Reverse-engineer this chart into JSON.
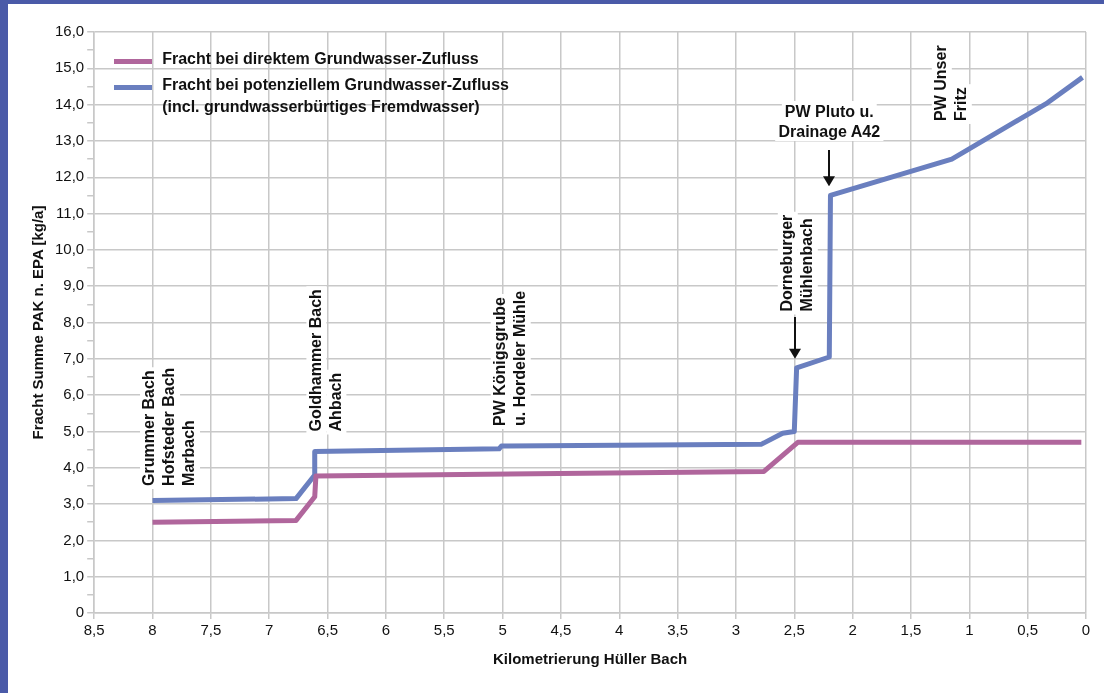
{
  "chart_data": {
    "type": "line",
    "xlabel": "Kilometrierung Hüller Bach",
    "ylabel": "Fracht Summe PAK n. EPA [kg/a]",
    "xlim": [
      8.5,
      0
    ],
    "xticks": [
      {
        "value": 8.5,
        "label": "8,5"
      },
      8,
      {
        "value": 7.5,
        "label": "7,5"
      },
      7,
      {
        "value": 6.5,
        "label": "6,5"
      },
      6,
      {
        "value": 5.5,
        "label": "5,5"
      },
      5,
      {
        "value": 4.5,
        "label": "4,5"
      },
      4,
      {
        "value": 3.5,
        "label": "3,5"
      },
      3,
      {
        "value": 2.5,
        "label": "2,5"
      },
      2,
      {
        "value": 1.5,
        "label": "1,5"
      },
      1,
      {
        "value": 0.5,
        "label": "0,5"
      },
      0
    ],
    "ylim": [
      0,
      16
    ],
    "yticks": [
      0,
      {
        "value": 0.5,
        "label": null
      },
      {
        "value": 1,
        "label": "1,0"
      },
      {
        "value": 1.5,
        "label": null
      },
      {
        "value": 2,
        "label": "2,0"
      },
      {
        "value": 2.5,
        "label": null
      },
      {
        "value": 3,
        "label": "3,0"
      },
      {
        "value": 3.5,
        "label": null
      },
      {
        "value": 4,
        "label": "4,0"
      },
      {
        "value": 4.5,
        "label": null
      },
      {
        "value": 5,
        "label": "5,0"
      },
      {
        "value": 5.5,
        "label": null
      },
      {
        "value": 6,
        "label": "6,0"
      },
      {
        "value": 6.5,
        "label": null
      },
      {
        "value": 7,
        "label": "7,0"
      },
      {
        "value": 7.5,
        "label": null
      },
      {
        "value": 8,
        "label": "8,0"
      },
      {
        "value": 8.5,
        "label": null
      },
      {
        "value": 9,
        "label": "9,0"
      },
      {
        "value": 9.5,
        "label": null
      },
      {
        "value": 10,
        "label": "10,0"
      },
      {
        "value": 10.5,
        "label": null
      },
      {
        "value": 11,
        "label": "11,0"
      },
      {
        "value": 11.5,
        "label": null
      },
      {
        "value": 12,
        "label": "12,0"
      },
      {
        "value": 12.5,
        "label": null
      },
      {
        "value": 13,
        "label": "13,0"
      },
      {
        "value": 13.5,
        "label": null
      },
      {
        "value": 14,
        "label": "14,0"
      },
      {
        "value": 14.5,
        "label": null
      },
      {
        "value": 15,
        "label": "15,0"
      },
      {
        "value": 15.5,
        "label": null
      },
      {
        "value": 16,
        "label": "16,0"
      }
    ],
    "grid": true,
    "legend": "top left",
    "marker": "none",
    "line_style": "solid",
    "series": [
      {
        "name": "Fracht bei direktem Grundwasser-Zufluss",
        "color": "#b0669c",
        "x": [
          8.0,
          6.77,
          6.61,
          6.6,
          2.76,
          2.47,
          0.04
        ],
        "values": [
          2.5,
          2.55,
          3.2,
          3.77,
          3.9,
          4.7,
          4.7
        ]
      },
      {
        "name": "Fracht bei potenziellem Grundwasser-Zufluss\n(incl. grundwasserbürtiges Fremdwasser)",
        "color": "#6a7fbf",
        "x": [
          8.0,
          6.77,
          6.61,
          6.61,
          5.03,
          5.01,
          2.78,
          2.6,
          2.5,
          2.48,
          2.2,
          2.19,
          1.15,
          0.33,
          0.03
        ],
        "values": [
          3.1,
          3.15,
          3.8,
          4.45,
          4.52,
          4.6,
          4.65,
          4.95,
          5.0,
          6.75,
          7.05,
          11.5,
          12.5,
          14.05,
          14.75
        ]
      }
    ],
    "annotations": [
      "Grummer Bach\nHofsteder Bach\nMarbach",
      "Goldhammer Bach\nAhbach",
      "PW Königsgrube\nu. Hordeler Mühle",
      "Dorneburger\nMühlenbach",
      "PW Pluto u.\nDrainage A42",
      "PW Unser\nFritz"
    ]
  }
}
